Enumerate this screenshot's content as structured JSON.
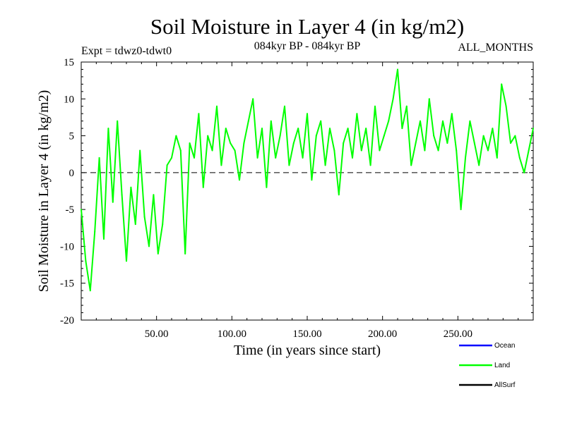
{
  "chart_data": {
    "type": "line",
    "title": "Soil Moisture in Layer 4 (in kg/m2)",
    "subtitle_left": "Expt = tdwz0-tdwt0",
    "subtitle_center": "084kyr BP - 084kyr BP",
    "subtitle_right": "ALL_MONTHS",
    "xlabel": "Time (in years since start)",
    "ylabel": "Soil Moisture in Layer 4 (in kg/m2)",
    "xlim": [
      0,
      300
    ],
    "ylim": [
      -20,
      15
    ],
    "x_ticks": [
      50,
      100,
      150,
      200,
      250
    ],
    "x_tick_labels": [
      "50.00",
      "100.00",
      "150.00",
      "200.00",
      "250.00"
    ],
    "y_ticks": [
      -20,
      -15,
      -10,
      -5,
      0,
      5,
      10,
      15
    ],
    "y_tick_labels": [
      "-20",
      "-15",
      "-10",
      "-5",
      "0",
      "5",
      "10",
      "15"
    ],
    "zero_line": {
      "y": 0,
      "style": "dashed"
    },
    "legend_placement": "bottom-right",
    "series": [
      {
        "name": "Ocean",
        "color": "#0000ff",
        "values": []
      },
      {
        "name": "Land",
        "color": "#00ff00",
        "x": [
          0,
          3,
          6,
          9,
          12,
          15,
          18,
          21,
          24,
          27,
          30,
          33,
          36,
          39,
          42,
          45,
          48,
          51,
          54,
          57,
          60,
          63,
          66,
          69,
          72,
          75,
          78,
          81,
          84,
          87,
          90,
          93,
          96,
          99,
          102,
          105,
          108,
          111,
          114,
          117,
          120,
          123,
          126,
          129,
          132,
          135,
          138,
          141,
          144,
          147,
          150,
          153,
          156,
          159,
          162,
          165,
          168,
          171,
          174,
          177,
          180,
          183,
          186,
          189,
          192,
          195,
          198,
          201,
          204,
          207,
          210,
          213,
          216,
          219,
          222,
          225,
          228,
          231,
          234,
          237,
          240,
          243,
          246,
          249,
          252,
          255,
          258,
          261,
          264,
          267,
          270,
          273,
          276,
          279,
          282,
          285,
          288,
          291,
          294,
          297,
          300
        ],
        "y": [
          -5,
          -12,
          -16,
          -8,
          2,
          -9,
          6,
          -4,
          7,
          -3,
          -12,
          -2,
          -7,
          3,
          -6,
          -10,
          -3,
          -11,
          -7,
          1,
          2,
          5,
          3,
          -11,
          4,
          2,
          8,
          -2,
          5,
          3,
          9,
          1,
          6,
          4,
          3,
          -1,
          4,
          7,
          10,
          2,
          6,
          -2,
          7,
          2,
          5,
          9,
          1,
          4,
          6,
          2,
          8,
          -1,
          5,
          7,
          1,
          6,
          3,
          -3,
          4,
          6,
          2,
          8,
          3,
          6,
          1,
          9,
          3,
          5,
          7,
          10,
          14,
          6,
          9,
          1,
          4,
          7,
          3,
          10,
          5,
          3,
          7,
          4,
          8,
          3,
          -5,
          2,
          7,
          4,
          1,
          5,
          3,
          6,
          2,
          12,
          9,
          4,
          5,
          2,
          0,
          3,
          6
        ]
      },
      {
        "name": "AllSurf",
        "color": "#000000",
        "values": []
      }
    ]
  }
}
